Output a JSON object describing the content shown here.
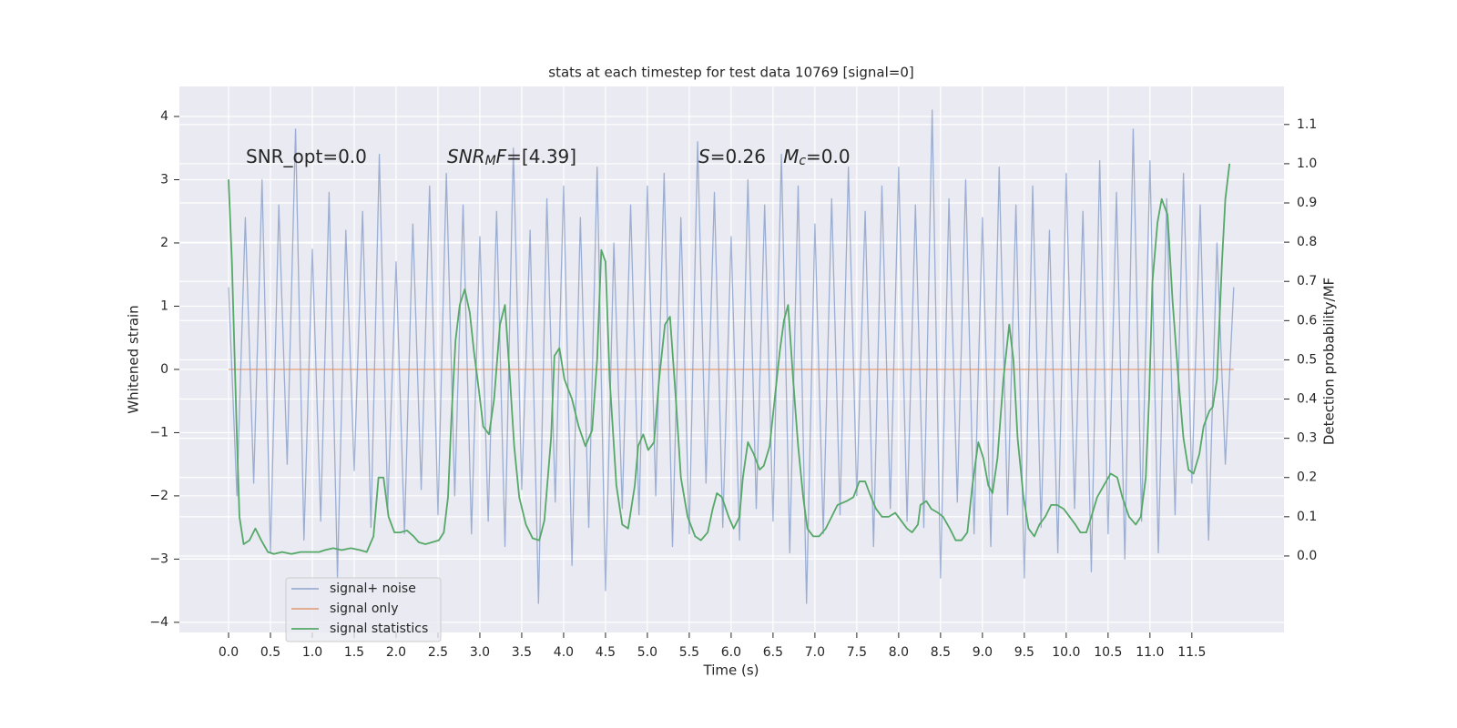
{
  "chart_data": {
    "type": "line",
    "title": "stats at each timestep for test data 10769 [signal=0]",
    "xlabel": "Time (s)",
    "ylabel": "Whitened strain",
    "y2label": "Detection probability/MF",
    "xlim": [
      -0.587,
      12.6
    ],
    "ylim": [
      -4.16,
      4.475
    ],
    "y2lim": [
      -0.195,
      1.197
    ],
    "xticks": [
      {
        "value": 0,
        "label": "0.0"
      },
      0.5,
      {
        "value": 1,
        "label": "1.0"
      },
      1.5,
      {
        "value": 2,
        "label": "2.0"
      },
      2.5,
      {
        "value": 3,
        "label": "3.0"
      },
      3.5,
      {
        "value": 4,
        "label": "4.0"
      },
      4.5,
      {
        "value": 5,
        "label": "5.0"
      },
      5.5,
      {
        "value": 6,
        "label": "6.0"
      },
      6.5,
      {
        "value": 7,
        "label": "7.0"
      },
      7.5,
      {
        "value": 8,
        "label": "8.0"
      },
      8.5,
      {
        "value": 9,
        "label": "9.0"
      },
      9.5,
      {
        "value": 10,
        "label": "10.0"
      },
      10.5,
      {
        "value": 11,
        "label": "11.0"
      },
      11.5
    ],
    "yticks": [
      {
        "value": -4,
        "label": "−4"
      },
      {
        "value": -3,
        "label": "−3"
      },
      {
        "value": -2,
        "label": "−2"
      },
      {
        "value": -1,
        "label": "−1"
      },
      0,
      1,
      2,
      3,
      4
    ],
    "y2ticks": [
      {
        "value": 0,
        "label": "0.0"
      },
      0.1,
      0.2,
      0.3,
      0.4,
      0.5,
      0.6,
      0.7,
      0.8,
      0.9,
      {
        "value": 1,
        "label": "1.0"
      },
      1.1
    ],
    "grid": true,
    "legend": "lower left",
    "annotations": [
      [
        {
          "text": "SNR_opt=0.0"
        }
      ],
      [
        {
          "text": "SNR",
          "italic": true
        },
        {
          "text": "M",
          "italic": true,
          "sub": true
        },
        {
          "text": "F",
          "italic": true
        },
        {
          "text": "=[4.39]"
        }
      ],
      [
        {
          "text": "S",
          "italic": true
        },
        {
          "text": "=0.26   "
        },
        {
          "text": "M",
          "italic": true
        },
        {
          "text": "c",
          "italic": true,
          "sub": true
        },
        {
          "text": "=0.0"
        }
      ]
    ],
    "series": [
      {
        "name": "signal+ noise",
        "color": "#4c72b0",
        "opacity": 0.5,
        "x": [
          0,
          0.1,
          0.2,
          0.3,
          0.4,
          0.5,
          0.6,
          0.7,
          0.8,
          0.9,
          1,
          1.1,
          1.2,
          1.3,
          1.4,
          1.5,
          1.6,
          1.7,
          1.8,
          1.9,
          2,
          2.1,
          2.2,
          2.3,
          2.4,
          2.5,
          2.6,
          2.7,
          2.8,
          2.9,
          3,
          3.1,
          3.2,
          3.3,
          3.4,
          3.5,
          3.6,
          3.7,
          3.8,
          3.9,
          4,
          4.1,
          4.2,
          4.3,
          4.4,
          4.5,
          4.6,
          4.7,
          4.8,
          4.9,
          5,
          5.1,
          5.2,
          5.3,
          5.4,
          5.5,
          5.6,
          5.7,
          5.8,
          5.9,
          6,
          6.1,
          6.2,
          6.3,
          6.4,
          6.5,
          6.6,
          6.7,
          6.8,
          6.9,
          7,
          7.1,
          7.2,
          7.3,
          7.4,
          7.5,
          7.6,
          7.7,
          7.8,
          7.9,
          8,
          8.1,
          8.2,
          8.3,
          8.4,
          8.5,
          8.6,
          8.7,
          8.8,
          8.9,
          9,
          9.1,
          9.2,
          9.3,
          9.4,
          9.5,
          9.6,
          9.7,
          9.8,
          9.9,
          10,
          10.1,
          10.2,
          10.3,
          10.4,
          10.5,
          10.6,
          10.7,
          10.8,
          10.9,
          11,
          11.1,
          11.2,
          11.3,
          11.4,
          11.5,
          11.6,
          11.7,
          11.8,
          11.9,
          12
        ],
        "values": [
          1.3,
          -2.0,
          2.4,
          -1.8,
          3.0,
          -2.9,
          2.6,
          -1.5,
          3.8,
          -2.7,
          1.9,
          -2.4,
          2.8,
          -3.3,
          2.2,
          -1.6,
          2.5,
          -2.5,
          3.4,
          -2.2,
          1.7,
          -2.6,
          2.3,
          -1.9,
          2.9,
          -2.3,
          3.1,
          -2.0,
          2.6,
          -2.6,
          2.1,
          -2.4,
          2.5,
          -2.8,
          3.5,
          -1.9,
          2.2,
          -3.7,
          2.7,
          -2.1,
          2.9,
          -3.1,
          2.4,
          -2.5,
          3.2,
          -3.5,
          2.0,
          -2.2,
          2.6,
          -2.3,
          2.9,
          -2.0,
          3.1,
          -2.8,
          2.4,
          -2.6,
          3.6,
          -1.8,
          2.8,
          -2.5,
          2.1,
          -2.7,
          3.0,
          -2.2,
          2.6,
          -2.4,
          3.4,
          -2.9,
          2.9,
          -3.7,
          2.3,
          -2.6,
          2.7,
          -2.3,
          3.2,
          -2.0,
          2.5,
          -2.8,
          2.9,
          -2.2,
          3.2,
          -2.4,
          2.6,
          -2.5,
          4.1,
          -3.3,
          2.7,
          -2.1,
          3.0,
          -2.6,
          2.4,
          -2.8,
          3.2,
          -2.3,
          2.6,
          -3.3,
          2.9,
          -2.5,
          2.2,
          -2.9,
          3.1,
          -2.2,
          2.5,
          -3.2,
          3.3,
          -2.6,
          2.8,
          -3.0,
          3.8,
          -2.4,
          3.3,
          -2.9,
          2.7,
          -2.3,
          3.1,
          -1.8,
          2.6,
          -2.7,
          2.0,
          -1.5,
          1.3
        ]
      },
      {
        "name": "signal only",
        "color": "#dd8452",
        "opacity": 0.7,
        "x": [
          0,
          12
        ],
        "values": [
          0,
          0
        ]
      },
      {
        "name": "signal statistics",
        "color": "#55a868",
        "opacity": 1,
        "axis": "y2",
        "x": [
          0,
          0.04,
          0.1,
          0.13,
          0.18,
          0.25,
          0.32,
          0.39,
          0.47,
          0.54,
          0.64,
          0.75,
          0.86,
          0.97,
          1.08,
          1.15,
          1.25,
          1.35,
          1.46,
          1.57,
          1.65,
          1.73,
          1.79,
          1.85,
          1.91,
          1.98,
          2.05,
          2.13,
          2.21,
          2.27,
          2.35,
          2.43,
          2.51,
          2.57,
          2.62,
          2.66,
          2.71,
          2.76,
          2.82,
          2.88,
          2.93,
          2.99,
          3.04,
          3.11,
          3.17,
          3.24,
          3.3,
          3.36,
          3.41,
          3.47,
          3.55,
          3.63,
          3.71,
          3.77,
          3.85,
          3.89,
          3.95,
          4.01,
          4.1,
          4.18,
          4.26,
          4.34,
          4.4,
          4.45,
          4.5,
          4.55,
          4.63,
          4.7,
          4.77,
          4.85,
          4.89,
          4.95,
          5.01,
          5.08,
          5.14,
          5.21,
          5.27,
          5.34,
          5.4,
          5.48,
          5.57,
          5.64,
          5.72,
          5.78,
          5.83,
          5.89,
          5.97,
          6.03,
          6.1,
          6.14,
          6.2,
          6.27,
          6.34,
          6.39,
          6.46,
          6.51,
          6.58,
          6.63,
          6.68,
          6.74,
          6.8,
          6.86,
          6.91,
          6.98,
          7.05,
          7.13,
          7.2,
          7.27,
          7.38,
          7.46,
          7.53,
          7.6,
          7.67,
          7.73,
          7.8,
          7.88,
          7.96,
          8.03,
          8.1,
          8.16,
          8.23,
          8.26,
          8.33,
          8.39,
          8.47,
          8.53,
          8.61,
          8.68,
          8.75,
          8.82,
          8.88,
          8.95,
          9.01,
          9.07,
          9.12,
          9.18,
          9.25,
          9.32,
          9.37,
          9.42,
          9.49,
          9.55,
          9.62,
          9.68,
          9.75,
          9.82,
          9.89,
          9.97,
          10.04,
          10.11,
          10.17,
          10.24,
          10.3,
          10.37,
          10.45,
          10.53,
          10.61,
          10.67,
          10.75,
          10.83,
          10.89,
          10.95,
          10.99,
          11.03,
          11.09,
          11.14,
          11.21,
          11.27,
          11.34,
          11.4,
          11.46,
          11.52,
          11.59,
          11.64,
          11.71,
          11.75,
          11.8,
          11.86,
          11.9,
          11.95
        ],
        "values": [
          0.96,
          0.75,
          0.3,
          0.1,
          0.03,
          0.04,
          0.07,
          0.04,
          0.01,
          0.005,
          0.01,
          0.005,
          0.01,
          0.01,
          0.01,
          0.015,
          0.02,
          0.015,
          0.02,
          0.015,
          0.01,
          0.05,
          0.2,
          0.2,
          0.1,
          0.06,
          0.06,
          0.065,
          0.05,
          0.035,
          0.03,
          0.035,
          0.04,
          0.06,
          0.15,
          0.35,
          0.55,
          0.64,
          0.68,
          0.62,
          0.52,
          0.42,
          0.33,
          0.31,
          0.4,
          0.59,
          0.64,
          0.45,
          0.28,
          0.15,
          0.08,
          0.045,
          0.04,
          0.09,
          0.3,
          0.51,
          0.53,
          0.45,
          0.4,
          0.33,
          0.28,
          0.32,
          0.5,
          0.78,
          0.75,
          0.45,
          0.18,
          0.08,
          0.07,
          0.18,
          0.28,
          0.31,
          0.27,
          0.29,
          0.45,
          0.59,
          0.61,
          0.4,
          0.2,
          0.1,
          0.05,
          0.04,
          0.06,
          0.12,
          0.16,
          0.15,
          0.1,
          0.07,
          0.1,
          0.2,
          0.29,
          0.26,
          0.22,
          0.23,
          0.28,
          0.38,
          0.52,
          0.6,
          0.64,
          0.45,
          0.28,
          0.15,
          0.07,
          0.05,
          0.05,
          0.07,
          0.1,
          0.13,
          0.14,
          0.15,
          0.19,
          0.19,
          0.15,
          0.12,
          0.1,
          0.1,
          0.11,
          0.09,
          0.07,
          0.06,
          0.08,
          0.13,
          0.14,
          0.12,
          0.11,
          0.1,
          0.07,
          0.04,
          0.04,
          0.06,
          0.18,
          0.29,
          0.25,
          0.18,
          0.16,
          0.25,
          0.45,
          0.59,
          0.5,
          0.3,
          0.15,
          0.07,
          0.05,
          0.08,
          0.1,
          0.13,
          0.13,
          0.12,
          0.1,
          0.08,
          0.06,
          0.06,
          0.1,
          0.15,
          0.18,
          0.21,
          0.2,
          0.15,
          0.1,
          0.08,
          0.1,
          0.2,
          0.4,
          0.7,
          0.85,
          0.91,
          0.87,
          0.65,
          0.45,
          0.3,
          0.22,
          0.21,
          0.26,
          0.33,
          0.37,
          0.38,
          0.45,
          0.75,
          0.91,
          1.0
        ]
      }
    ]
  }
}
